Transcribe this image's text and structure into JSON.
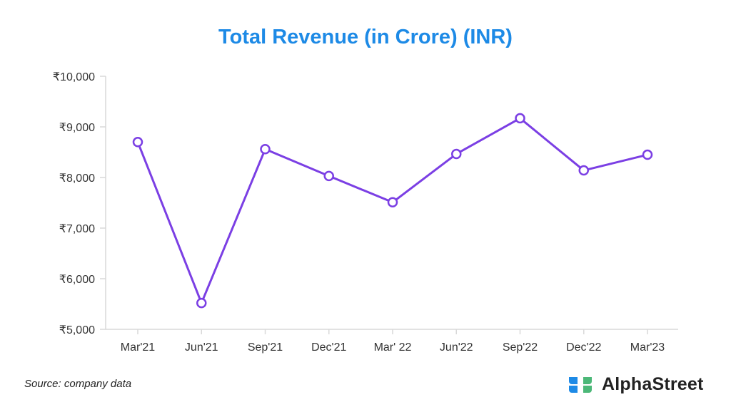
{
  "chart_data": {
    "type": "line",
    "title": "Total Revenue (in Crore) (INR)",
    "xlabel": "",
    "ylabel": "",
    "categories": [
      "Mar'21",
      "Jun'21",
      "Sep'21",
      "Dec'21",
      "Mar' 22",
      "Jun'22",
      "Sep'22",
      "Dec'22",
      "Mar'23"
    ],
    "series": [
      {
        "name": "Total Revenue",
        "values": [
          8700,
          5520,
          8560,
          8030,
          7510,
          8465,
          9170,
          8140,
          8450
        ]
      }
    ],
    "ylim": [
      5000,
      10000
    ],
    "yticks": [
      5000,
      6000,
      7000,
      8000,
      9000,
      10000
    ],
    "ytick_labels": [
      "₹5,000",
      "₹6,000",
      "₹7,000",
      "₹8,000",
      "₹9,000",
      "₹10,000"
    ],
    "grid": false,
    "colors": {
      "line": "#7b3fe4",
      "title": "#1d8ae6",
      "axis": "#d9d9d9"
    }
  },
  "footer": {
    "source": "Source: company data",
    "brand": "AlphaStreet"
  }
}
